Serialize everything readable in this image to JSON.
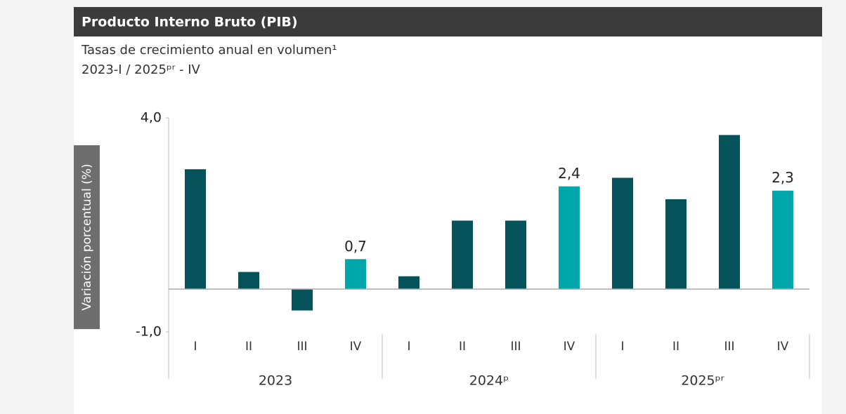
{
  "chart_data": {
    "type": "bar",
    "title": "Producto Interno Bruto (PIB)",
    "subtitle": [
      "Tasas de crecimiento anual en volumen¹",
      "2023-I / 2025ᵖʳ - IV"
    ],
    "y_label": "Variación porcentual (%)",
    "categories": [
      "I",
      "II",
      "III",
      "IV",
      "I",
      "II",
      "III",
      "IV",
      "I",
      "II",
      "III",
      "IV"
    ],
    "groups": [
      "2023",
      "2024ᵖ",
      "2025ᵖʳ"
    ],
    "values": [
      2.8,
      0.4,
      -0.5,
      0.7,
      0.3,
      1.6,
      1.6,
      2.4,
      2.6,
      2.1,
      3.6,
      2.3
    ],
    "value_labels": [
      null,
      null,
      null,
      "0,7",
      null,
      null,
      null,
      "2,4",
      null,
      null,
      null,
      "2,3"
    ],
    "colors": [
      "#05525a",
      "#05525a",
      "#05525a",
      "#00a7aa",
      "#05525a",
      "#05525a",
      "#05525a",
      "#00a7aa",
      "#05525a",
      "#05525a",
      "#05525a",
      "#00a7aa"
    ],
    "ylim": [
      -1,
      4
    ],
    "yticks": [
      {
        "value": 4,
        "label": "4,0"
      },
      {
        "value": -1,
        "label": "-1,0"
      }
    ]
  }
}
